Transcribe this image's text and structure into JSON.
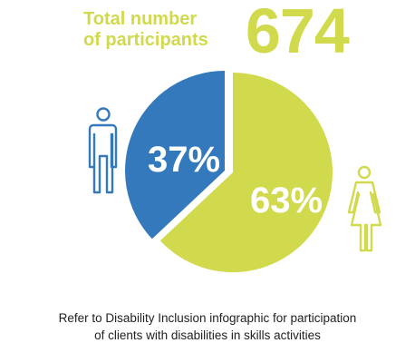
{
  "colors": {
    "male": "#3579bd",
    "female": "#d1d94c",
    "text_accent": "#d1d94c"
  },
  "header": {
    "total_label_line1": "Total number",
    "total_label_line2": "of participants",
    "total_value": "674"
  },
  "icons": {
    "male": "male-figure-icon",
    "female": "female-figure-icon"
  },
  "chart_data": {
    "type": "pie",
    "slices": [
      {
        "label": "37%",
        "value": 37,
        "color": "#3579bd",
        "icon": "male-figure-icon"
      },
      {
        "label": "63%",
        "value": 63,
        "color": "#d1d94c",
        "icon": "female-figure-icon"
      }
    ]
  },
  "caption": {
    "line1": "Refer to Disability Inclusion infographic for participation",
    "line2": "of clients with disabilities in skills activities"
  }
}
